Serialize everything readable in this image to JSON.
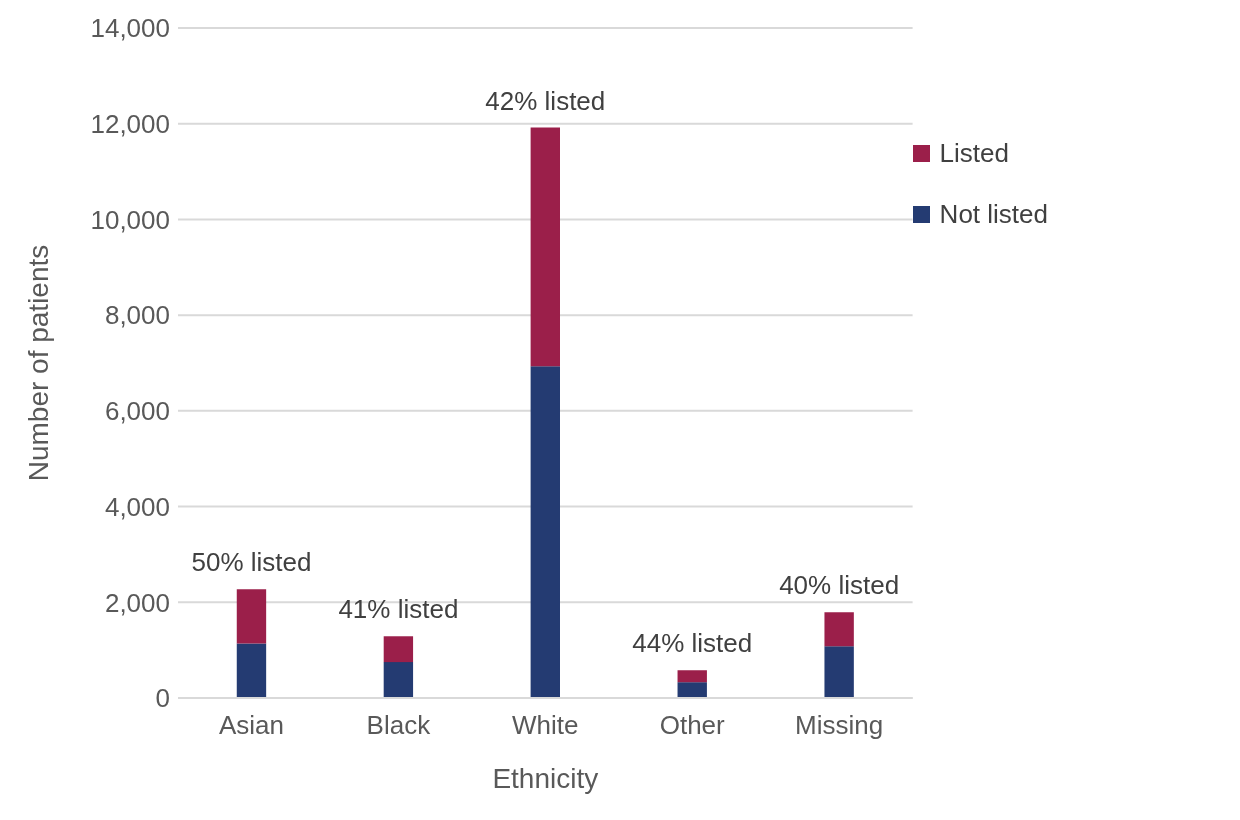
{
  "chart_data": {
    "type": "bar",
    "stacked": true,
    "xlabel": "Ethnicity",
    "ylabel": "Number of patients",
    "categories": [
      "Asian",
      "Black",
      "White",
      "Other",
      "Missing"
    ],
    "series": [
      {
        "name": "Not listed",
        "color": "#243b72",
        "values": [
          1140,
          750,
          6930,
          330,
          1080
        ]
      },
      {
        "name": "Listed",
        "color": "#9b1f4a",
        "values": [
          1130,
          540,
          4990,
          250,
          710
        ]
      }
    ],
    "ylim": [
      0,
      14000
    ],
    "yticks": [
      {
        "value": 0,
        "label": "0"
      },
      {
        "value": 2000,
        "label": "2,000"
      },
      {
        "value": 4000,
        "label": "4,000"
      },
      {
        "value": 6000,
        "label": "6,000"
      },
      {
        "value": 8000,
        "label": "8,000"
      },
      {
        "value": 10000,
        "label": "10,000"
      },
      {
        "value": 12000,
        "label": "12,000"
      },
      {
        "value": 14000,
        "label": "14,000"
      }
    ],
    "grid": "y",
    "legend": "top right",
    "annotations": [
      {
        "text": "50% listed",
        "x": "Asian",
        "y": 2270
      },
      {
        "text": "41% listed",
        "x": "Black",
        "y": 1290
      },
      {
        "text": "42% listed",
        "x": "White",
        "y": 11920
      },
      {
        "text": "44% listed",
        "x": "Other",
        "y": 580
      },
      {
        "text": "40% listed",
        "x": "Missing",
        "y": 1790
      }
    ]
  }
}
